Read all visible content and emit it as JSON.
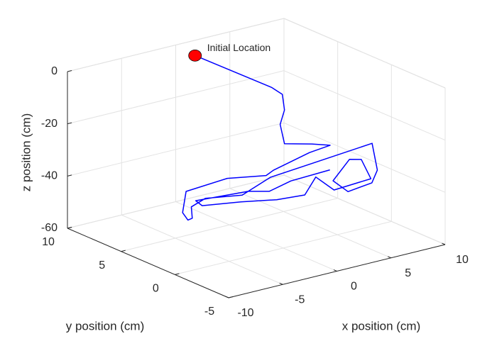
{
  "chart_data": {
    "type": "line3d",
    "xlabel": "x position (cm)",
    "ylabel": "y position (cm)",
    "zlabel": "z position (cm)",
    "annotation": "Initial Location",
    "marker_color": "#ff0000",
    "xlim": [
      -10,
      10
    ],
    "ylim": [
      -5,
      10
    ],
    "zlim": [
      -60,
      0
    ],
    "xticks": [
      -10,
      -5,
      0,
      5,
      10
    ],
    "yticks": [
      -5,
      0,
      5,
      10
    ],
    "zticks": [
      -60,
      -40,
      -20,
      0
    ],
    "grid": true,
    "series": [
      {
        "color": "#0000ff",
        "x": [
          -0.3,
          2.7,
          3.1,
          3.3,
          2.9,
          3.3,
          8.4,
          9.3,
          7.1,
          2.6,
          1.4,
          -0.2,
          -4.4,
          -7.5,
          -8.2,
          -7.7,
          -6.2,
          -4.2,
          -1.6,
          2.5,
          6.9,
          9.9,
          8.7,
          7.7,
          5.1,
          5.7,
          9.6,
          9.2,
          8.2,
          4.5,
          5.2,
          2.1,
          -0.2,
          -2.6,
          -5.4,
          -5.1,
          -0.7,
          0.5,
          3.2,
          7.0
        ],
        "y": [
          7.9,
          3.8,
          3.2,
          3.2,
          3.2,
          3.2,
          5.8,
          5.0,
          4.7,
          3.5,
          3.0,
          5.0,
          4.6,
          1.8,
          0.6,
          0.7,
          2.3,
          3.0,
          2.2,
          3.7,
          4.2,
          1.7,
          0.0,
          -0.5,
          -0.9,
          1.1,
          3.5,
          2.0,
          0.1,
          -0.2,
          2.2,
          0.1,
          0.4,
          1.3,
          2.1,
          3.0,
          2.5,
          1.8,
          2.5,
          2.7
        ],
        "z": [
          0,
          -8,
          -10,
          -16.2,
          -21.3,
          -29.1,
          -39,
          -39,
          -39,
          -39,
          -39,
          -42,
          -42,
          -42,
          -42,
          -42,
          -42,
          -42,
          -42,
          -42,
          -42,
          -33,
          -39,
          -42,
          -42,
          -42,
          -42,
          -39,
          -42,
          -42,
          -42,
          -42,
          -42,
          -42,
          -42,
          -42,
          -42,
          -42,
          -42,
          -42
        ]
      }
    ]
  }
}
